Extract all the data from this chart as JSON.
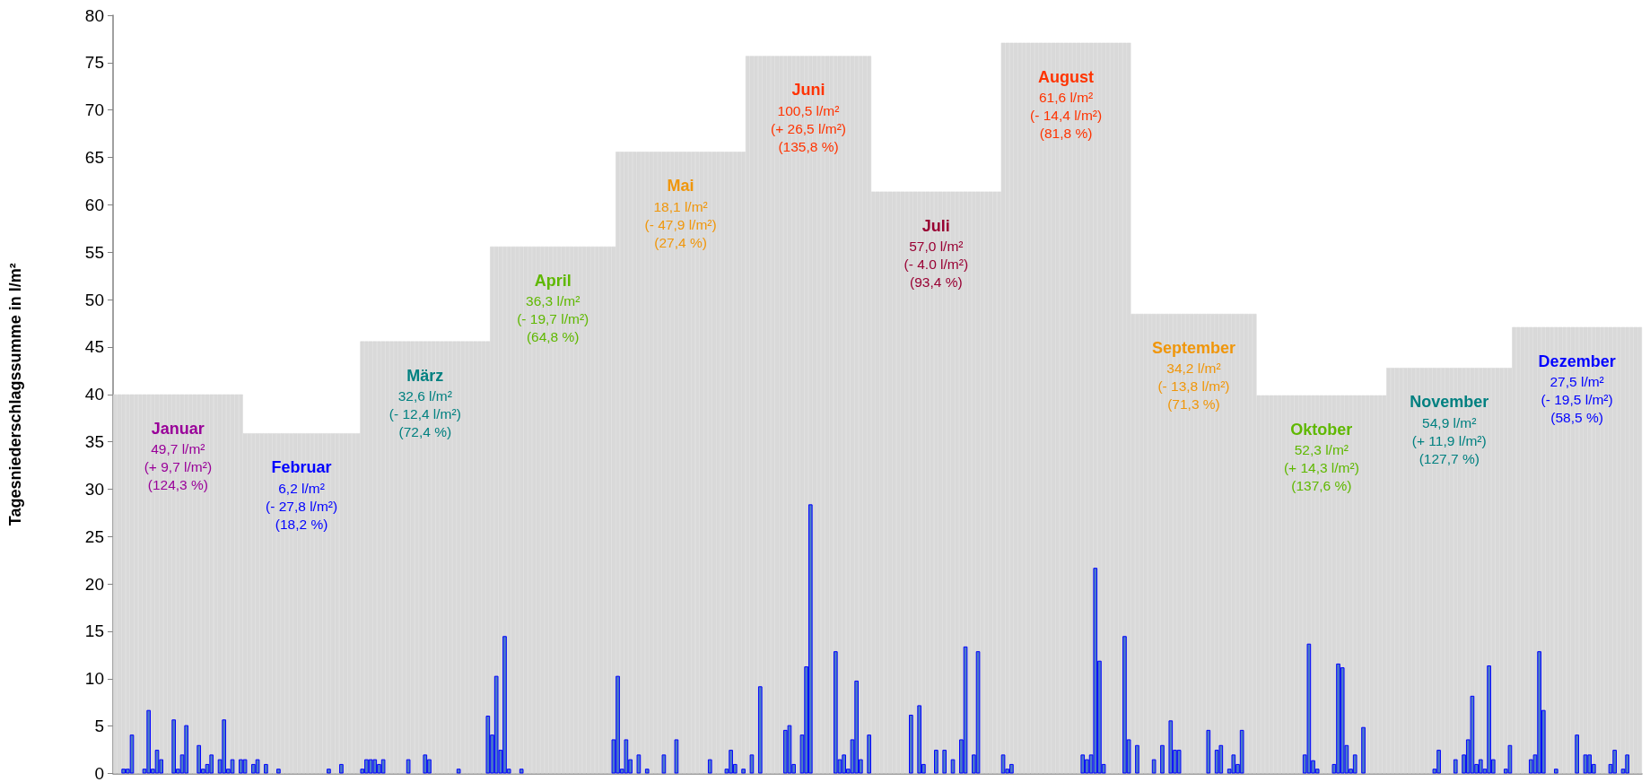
{
  "chart_data": {
    "type": "bar",
    "ylabel": "Tagesniederschlagssumme in l/m²",
    "ylim": [
      0,
      80
    ],
    "yticks": [
      0,
      5,
      10,
      15,
      20,
      25,
      30,
      35,
      40,
      45,
      50,
      55,
      60,
      65,
      70,
      75,
      80
    ],
    "tick_labels": "y",
    "grid": false,
    "categories": [
      null,
      null,
      null,
      null,
      null,
      null,
      null,
      null,
      null,
      null,
      null,
      null,
      null,
      null,
      null,
      null,
      null,
      null,
      null,
      null,
      null,
      null,
      null,
      null,
      null,
      null,
      null,
      null,
      null,
      null,
      null,
      null,
      null,
      null,
      null,
      null,
      null,
      null,
      null,
      null,
      null,
      null,
      null,
      null,
      null,
      null,
      null,
      null,
      null,
      null,
      null,
      null,
      null,
      null,
      null,
      null,
      null,
      null,
      null,
      null,
      null,
      null,
      null,
      null,
      null,
      null,
      null,
      null,
      null,
      null,
      null,
      null,
      null,
      null,
      null,
      null,
      null,
      null,
      null,
      null,
      null,
      null,
      null,
      null,
      null,
      null,
      null,
      null,
      null,
      null,
      null,
      null,
      null,
      null,
      null,
      null,
      null,
      null,
      null,
      null,
      null,
      null,
      null,
      null,
      null,
      null,
      null,
      null,
      null,
      null,
      null,
      null,
      null,
      null,
      null,
      null,
      null,
      null,
      null,
      null,
      null,
      null,
      null,
      null,
      null,
      null,
      null,
      null,
      null,
      null,
      null,
      null,
      null,
      null,
      null,
      null,
      null,
      null,
      null,
      null,
      null,
      null,
      null,
      null,
      null,
      null,
      null,
      null,
      null,
      null,
      null,
      null,
      null,
      null,
      null,
      null,
      null,
      null,
      null,
      null,
      null,
      null,
      null,
      null,
      null,
      null,
      null,
      null,
      null,
      null,
      null,
      null,
      null,
      null,
      null,
      null,
      null,
      null,
      null,
      null,
      null,
      null,
      null,
      null,
      null,
      null,
      null,
      null,
      null,
      null,
      null,
      null,
      null,
      null,
      null,
      null,
      null,
      null,
      null,
      null,
      null,
      null,
      null,
      null,
      null,
      null,
      null,
      null,
      null,
      null,
      null,
      null,
      null,
      null,
      null,
      null,
      null,
      null,
      null,
      null,
      null,
      null,
      null,
      null,
      null,
      null,
      null,
      null,
      null,
      null,
      null,
      null,
      null,
      null,
      null,
      null,
      null,
      null,
      null,
      null,
      null,
      null,
      null,
      null,
      null,
      null,
      null,
      null,
      null,
      null,
      null,
      null,
      null,
      null,
      null,
      null,
      null,
      null,
      null,
      null,
      null,
      null,
      null,
      null,
      null,
      null,
      null,
      null,
      null,
      null,
      null,
      null,
      null,
      null,
      null,
      null,
      null,
      null,
      null,
      null,
      null,
      null,
      null,
      null,
      null,
      null,
      null,
      null,
      null,
      null,
      null,
      null,
      null,
      null,
      null,
      null,
      null,
      null,
      null,
      null,
      null,
      null,
      null,
      null,
      null,
      null,
      null,
      null,
      null,
      null,
      null,
      null,
      null,
      null,
      null,
      null,
      null,
      null,
      null,
      null,
      null,
      null,
      null,
      null,
      null,
      null,
      null,
      null,
      null,
      null,
      null,
      null,
      null,
      null,
      null,
      null,
      null,
      null,
      null,
      null,
      null,
      null,
      null,
      null,
      null,
      null,
      null,
      null,
      null,
      null,
      null,
      null,
      null,
      null,
      null,
      null,
      null,
      null,
      null,
      null,
      null,
      null,
      null,
      null,
      null
    ],
    "series": [
      {
        "color": "#d9d9d9",
        "values": [
          40,
          40,
          40,
          40,
          40,
          40,
          40,
          40,
          40,
          40,
          40,
          40,
          40,
          40,
          40,
          40,
          40,
          40,
          40,
          40,
          40,
          40,
          40,
          40,
          40,
          40,
          40,
          40,
          40,
          40,
          40,
          35.9,
          35.9,
          35.9,
          35.9,
          35.9,
          35.9,
          35.9,
          35.9,
          35.9,
          35.9,
          35.9,
          35.9,
          35.9,
          35.9,
          35.9,
          35.9,
          35.9,
          35.9,
          35.9,
          35.9,
          35.9,
          35.9,
          35.9,
          35.9,
          35.9,
          35.9,
          35.9,
          35.9,
          45.6,
          45.6,
          45.6,
          45.6,
          45.6,
          45.6,
          45.6,
          45.6,
          45.6,
          45.6,
          45.6,
          45.6,
          45.6,
          45.6,
          45.6,
          45.6,
          45.6,
          45.6,
          45.6,
          45.6,
          45.6,
          45.6,
          45.6,
          45.6,
          45.6,
          45.6,
          45.6,
          45.6,
          45.6,
          45.6,
          45.6,
          55.6,
          55.6,
          55.6,
          55.6,
          55.6,
          55.6,
          55.6,
          55.6,
          55.6,
          55.6,
          55.6,
          55.6,
          55.6,
          55.6,
          55.6,
          55.6,
          55.6,
          55.6,
          55.6,
          55.6,
          55.6,
          55.6,
          55.6,
          55.6,
          55.6,
          55.6,
          55.6,
          55.6,
          55.6,
          55.6,
          65.6,
          65.6,
          65.6,
          65.6,
          65.6,
          65.6,
          65.6,
          65.6,
          65.6,
          65.6,
          65.6,
          65.6,
          65.6,
          65.6,
          65.6,
          65.6,
          65.6,
          65.6,
          65.6,
          65.6,
          65.6,
          65.6,
          65.6,
          65.6,
          65.6,
          65.6,
          65.6,
          65.6,
          65.6,
          65.6,
          65.6,
          75.7,
          75.7,
          75.7,
          75.7,
          75.7,
          75.7,
          75.7,
          75.7,
          75.7,
          75.7,
          75.7,
          75.7,
          75.7,
          75.7,
          75.7,
          75.7,
          75.7,
          75.7,
          75.7,
          75.7,
          75.7,
          75.7,
          75.7,
          75.7,
          75.7,
          75.7,
          75.7,
          75.7,
          75.7,
          75.7,
          61.4,
          61.4,
          61.4,
          61.4,
          61.4,
          61.4,
          61.4,
          61.4,
          61.4,
          61.4,
          61.4,
          61.4,
          61.4,
          61.4,
          61.4,
          61.4,
          61.4,
          61.4,
          61.4,
          61.4,
          61.4,
          61.4,
          61.4,
          61.4,
          61.4,
          61.4,
          61.4,
          61.4,
          61.4,
          61.4,
          61.4,
          77.1,
          77.1,
          77.1,
          77.1,
          77.1,
          77.1,
          77.1,
          77.1,
          77.1,
          77.1,
          77.1,
          77.1,
          77.1,
          77.1,
          77.1,
          77.1,
          77.1,
          77.1,
          77.1,
          77.1,
          77.1,
          77.1,
          77.1,
          77.1,
          77.1,
          77.1,
          77.1,
          77.1,
          77.1,
          77.1,
          77.1,
          48.5,
          48.5,
          48.5,
          48.5,
          48.5,
          48.5,
          48.5,
          48.5,
          48.5,
          48.5,
          48.5,
          48.5,
          48.5,
          48.5,
          48.5,
          48.5,
          48.5,
          48.5,
          48.5,
          48.5,
          48.5,
          48.5,
          48.5,
          48.5,
          48.5,
          48.5,
          48.5,
          48.5,
          48.5,
          48.5,
          39.9,
          39.9,
          39.9,
          39.9,
          39.9,
          39.9,
          39.9,
          39.9,
          39.9,
          39.9,
          39.9,
          39.9,
          39.9,
          39.9,
          39.9,
          39.9,
          39.9,
          39.9,
          39.9,
          39.9,
          39.9,
          39.9,
          39.9,
          39.9,
          39.9,
          39.9,
          39.9,
          39.9,
          39.9,
          39.9,
          39.9,
          42.8,
          42.8,
          42.8,
          42.8,
          42.8,
          42.8,
          42.8,
          42.8,
          42.8,
          42.8,
          42.8,
          42.8,
          42.8,
          42.8,
          42.8,
          42.8,
          42.8,
          42.8,
          42.8,
          42.8,
          42.8,
          42.8,
          42.8,
          42.8,
          42.8,
          42.8,
          42.8,
          42.8,
          42.8,
          42.8,
          47.1,
          47.1,
          47.1,
          47.1,
          47.1,
          47.1,
          47.1,
          47.1,
          47.1,
          47.1,
          47.1,
          47.1,
          47.1,
          47.1,
          47.1,
          47.1,
          47.1,
          47.1,
          47.1,
          47.1,
          47.1,
          47.1,
          47.1,
          47.1,
          47.1,
          47.1,
          47.1,
          47.1,
          47.1,
          47.1,
          47.1
        ]
      },
      {
        "color": "#4a7ac8",
        "values": [
          0,
          0,
          0.5,
          0.5,
          4.1,
          0,
          0,
          0.5,
          6.7,
          0.5,
          2.5,
          1.5,
          0,
          0,
          5.7,
          0.5,
          2,
          5.1,
          0,
          0,
          3,
          0.5,
          1,
          2,
          0,
          1.5,
          5.7,
          0.5,
          1.5,
          0,
          1.5,
          1.5,
          0,
          1,
          1.5,
          0,
          1,
          0,
          0,
          0.5,
          0,
          0,
          0,
          0,
          0,
          0,
          0,
          0,
          0,
          0,
          0,
          0.5,
          0,
          0,
          1,
          0,
          0,
          0,
          0,
          0.5,
          1.5,
          1.5,
          1.5,
          1,
          1.5,
          0,
          0,
          0,
          0,
          0,
          1.5,
          0,
          0,
          0,
          2,
          1.5,
          0,
          0,
          0,
          0,
          0,
          0,
          0.5,
          0,
          0,
          0,
          0,
          0,
          0,
          6.1,
          4.1,
          10.3,
          2.5,
          14.5,
          0.5,
          0,
          0,
          0.5,
          0,
          0,
          0,
          0,
          0,
          0,
          0,
          0,
          0,
          0,
          0,
          0,
          0,
          0,
          0,
          0,
          0,
          0,
          0,
          0,
          0,
          3.6,
          10.3,
          0.5,
          3.6,
          1.5,
          0,
          2,
          0,
          0.5,
          0,
          0,
          0,
          2,
          0,
          0,
          3.6,
          0,
          0,
          0,
          0,
          0,
          0,
          0,
          1.5,
          0,
          0,
          0,
          0.5,
          2.5,
          1,
          0,
          0.5,
          0,
          2,
          0,
          9.2,
          0,
          0,
          0,
          0,
          0,
          4.6,
          5.1,
          1,
          0,
          4.1,
          11.3,
          28.4,
          0,
          0,
          0,
          0,
          0,
          12.9,
          1.5,
          2,
          0.5,
          3.6,
          9.8,
          1.5,
          0,
          4.1,
          0,
          0,
          0,
          0,
          0,
          0,
          0,
          0,
          0,
          6.2,
          0,
          7.2,
          1,
          0,
          0,
          2.5,
          0,
          2.5,
          0,
          1.5,
          0,
          3.6,
          13.4,
          0,
          2,
          12.9,
          0,
          0,
          0,
          0,
          0,
          2,
          0.5,
          1,
          0,
          0,
          0,
          0,
          0,
          0,
          0,
          0,
          0,
          0,
          0,
          0,
          0,
          0,
          0,
          0,
          2,
          1.5,
          2,
          21.7,
          11.9,
          1,
          0,
          0,
          0,
          0,
          14.5,
          3.6,
          0,
          3,
          0,
          0,
          0,
          1.5,
          0,
          3,
          0,
          5.6,
          2.5,
          2.5,
          0,
          0,
          0,
          0,
          0,
          0,
          4.6,
          0,
          2.5,
          3,
          0,
          0.5,
          2,
          1,
          4.6,
          0,
          0,
          0,
          0,
          0,
          0,
          0,
          0,
          0,
          0,
          0,
          0,
          0,
          0,
          2,
          13.7,
          1.4,
          0.5,
          0,
          0,
          0,
          1,
          11.6,
          11.2,
          3,
          0.5,
          2,
          0,
          4.9,
          0,
          0,
          0,
          0,
          0,
          0,
          0,
          0,
          0,
          0,
          0,
          0,
          0,
          0,
          0,
          0,
          0.5,
          2.5,
          0,
          0,
          0,
          1.5,
          0,
          2,
          3.6,
          8.2,
          1,
          1.5,
          0.5,
          11.4,
          1.5,
          0,
          0,
          0.5,
          3,
          0,
          0,
          0,
          0,
          1.5,
          2,
          12.9,
          6.7,
          0,
          0,
          0.5,
          0,
          0,
          0,
          0,
          4.1,
          0,
          2,
          2,
          1,
          0,
          0,
          0,
          1,
          2.5,
          0,
          0.5,
          2,
          0,
          0,
          0
        ]
      }
    ],
    "annotations": [
      "Januar\n49,7 l/m²\n(+ 9,7 l/m²)\n(124,3 %)",
      "Februar\n6,2 l/m²\n(- 27,8 l/m²)\n(18,2 %)",
      "März\n32,6 l/m²\n(- 12,4 l/m²)\n(72,4 %)",
      "April\n36,3 l/m²\n(- 19,7 l/m²)\n(64,8 %)",
      "Mai\n18,1 l/m²\n(- 47,9 l/m²)\n(27,4 %)",
      "Juni\n100,5 l/m²\n(+ 26,5 l/m²)\n(135,8 %)",
      "Juli\n57,0 l/m²\n(- 4.0 l/m²)\n(93,4 %)",
      "August\n61,6 l/m²\n(- 14,4 l/m²)\n(81,8 %)",
      "September\n34,2 l/m²\n(- 13,8 l/m²)\n(71,3 %)",
      "Oktober\n52,3 l/m²\n(+ 14,3 l/m²)\n(137,6 %)",
      "November\n54,9 l/m²\n(+ 11,9 l/m²)\n(127,7 %)",
      "Dezember\n27,5 l/m²\n(- 19,5 l/m²)\n(58,5 %)"
    ]
  }
}
